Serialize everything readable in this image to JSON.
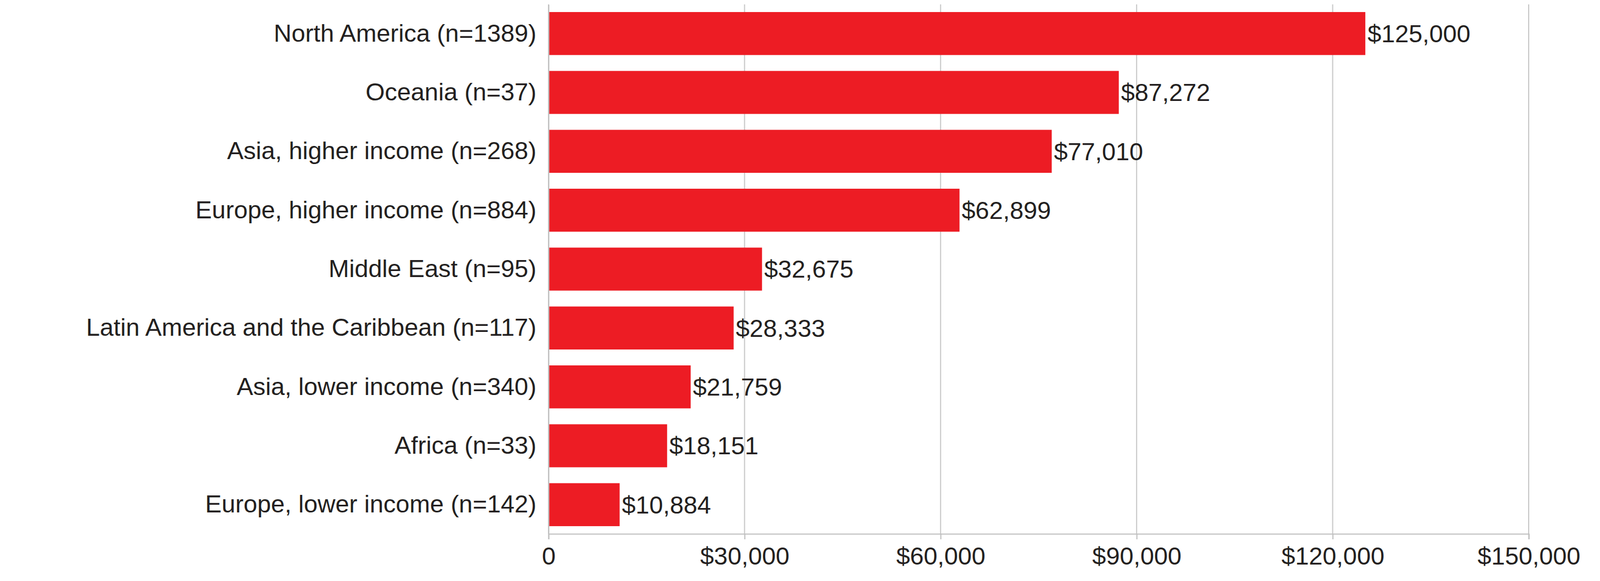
{
  "chart_data": {
    "type": "bar",
    "orientation": "horizontal",
    "categories": [
      "North America (n=1389)",
      "Oceania (n=37)",
      "Asia, higher income (n=268)",
      "Europe, higher income (n=884)",
      "Middle East (n=95)",
      "Latin America and the Caribbean (n=117)",
      "Asia, lower income (n=340)",
      "Africa (n=33)",
      "Europe, lower income (n=142)"
    ],
    "values": [
      125000,
      87272,
      77010,
      62899,
      32675,
      28333,
      21759,
      18151,
      10884
    ],
    "value_labels": [
      "$125,000",
      "$87,272",
      "$77,010",
      "$62,899",
      "$32,675",
      "$28,333",
      "$21,759",
      "$18,151",
      "$10,884"
    ],
    "color": "#ed1c24",
    "xlim": [
      0,
      150000
    ],
    "xticks": [
      0,
      {
        "value": 30000,
        "label": "$30,000"
      },
      {
        "value": 60000,
        "label": "$60,000"
      },
      {
        "value": 90000,
        "label": "$90,000"
      },
      {
        "value": 120000,
        "label": "$120,000"
      },
      {
        "value": 150000,
        "label": "$150,000"
      }
    ],
    "grid": true,
    "data_labels": true
  }
}
